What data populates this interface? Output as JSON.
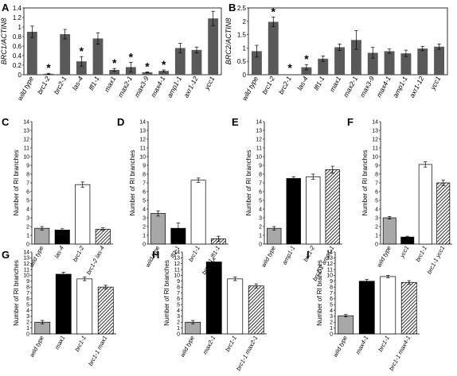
{
  "figure": {
    "width": 574,
    "height": 473
  },
  "chart_data": [
    {
      "panel": "A",
      "type": "bar",
      "ylabel": "BRC1/ACTIN8",
      "ylim": [
        0,
        1.4
      ],
      "yticks": [
        0,
        0.2,
        0.4,
        0.6,
        0.8,
        1.0,
        1.2,
        1.4
      ],
      "categories": [
        "wild type",
        "brc1-2",
        "brc2-1",
        "las-4",
        "lfl1-1",
        "max1",
        "max2-1",
        "max3-9",
        "max4-1",
        "amp1-1",
        "axr1-12",
        "ycc1"
      ],
      "values": [
        0.9,
        0.02,
        0.85,
        0.28,
        0.76,
        0.1,
        0.16,
        0.05,
        0.08,
        0.56,
        0.52,
        1.18
      ],
      "errors": [
        0.12,
        0.01,
        0.1,
        0.1,
        0.12,
        0.03,
        0.1,
        0.01,
        0.02,
        0.1,
        0.06,
        0.15
      ],
      "significant": [
        false,
        true,
        false,
        true,
        false,
        true,
        true,
        true,
        true,
        false,
        false,
        false
      ],
      "star": "*",
      "color": "#595959"
    },
    {
      "panel": "B",
      "type": "bar",
      "ylabel": "BRC2/ACTIN8",
      "ylim": [
        0,
        2.5
      ],
      "yticks": [
        0,
        0.5,
        1,
        1.5,
        2,
        2.5
      ],
      "categories": [
        "wild type",
        "brc1-2",
        "brc2-1",
        "las-4",
        "lfl1-1",
        "max1",
        "max2-1",
        "max3-9",
        "max4-1",
        "amp1-1",
        "axr1-12",
        "ycc1"
      ],
      "values": [
        0.88,
        1.98,
        0.0,
        0.28,
        0.6,
        1.03,
        1.3,
        0.82,
        0.88,
        0.8,
        0.98,
        1.05
      ],
      "errors": [
        0.22,
        0.18,
        0.0,
        0.1,
        0.1,
        0.12,
        0.35,
        0.2,
        0.08,
        0.12,
        0.08,
        0.1
      ],
      "significant": [
        false,
        true,
        true,
        true,
        false,
        false,
        false,
        false,
        false,
        false,
        false,
        false
      ],
      "star": "*",
      "color": "#595959"
    },
    {
      "panel": "C",
      "type": "bar",
      "ylabel": "Number of RI branches",
      "ylim": [
        0,
        14
      ],
      "yticks": [
        0,
        1,
        2,
        3,
        4,
        5,
        6,
        7,
        8,
        9,
        10,
        11,
        12,
        13,
        14
      ],
      "categories": [
        "wild type",
        "las-4",
        "brc1-2",
        "brc1-2 las-4"
      ],
      "values": [
        1.8,
        1.6,
        6.8,
        1.7
      ],
      "errors": [
        0.2,
        0.15,
        0.3,
        0.15
      ]
    },
    {
      "panel": "D",
      "type": "bar",
      "ylabel": "Number of RI branches",
      "ylim": [
        0,
        14
      ],
      "yticks": [
        0,
        1,
        2,
        3,
        4,
        5,
        6,
        7,
        8,
        9,
        10,
        11,
        12,
        13,
        14
      ],
      "categories": [
        "wild type",
        "lfl1-1",
        "brc1-1",
        "brc1-1 lfl1-1"
      ],
      "values": [
        3.5,
        1.8,
        7.3,
        0.6
      ],
      "errors": [
        0.3,
        0.6,
        0.25,
        0.3
      ]
    },
    {
      "panel": "E",
      "type": "bar",
      "ylabel": "Number of RI branches",
      "ylim": [
        0,
        14
      ],
      "yticks": [
        0,
        1,
        2,
        3,
        4,
        5,
        6,
        7,
        8,
        9,
        10,
        11,
        12,
        13,
        14
      ],
      "categories": [
        "wild type",
        "amp1-1",
        "brc1-2",
        "brc1-2 amp1-1"
      ],
      "values": [
        1.8,
        7.5,
        7.7,
        8.5
      ],
      "errors": [
        0.2,
        0.2,
        0.3,
        0.4
      ]
    },
    {
      "panel": "F",
      "type": "bar",
      "ylabel": "Number of RI branches",
      "ylim": [
        0,
        14
      ],
      "yticks": [
        0,
        1,
        2,
        3,
        4,
        5,
        6,
        7,
        8,
        9,
        10,
        11,
        12,
        13,
        14
      ],
      "categories": [
        "wild type",
        "ycc1",
        "brc1-1",
        "brc1-1 ycc1"
      ],
      "values": [
        3.0,
        0.8,
        9.1,
        7.0
      ],
      "errors": [
        0.15,
        0.1,
        0.3,
        0.3
      ]
    },
    {
      "panel": "G",
      "type": "bar",
      "ylabel": "Number of RI branches",
      "ylim": [
        0,
        14
      ],
      "yticks": [
        0,
        1,
        2,
        3,
        4,
        5,
        6,
        7,
        8,
        9,
        10,
        11,
        12,
        13,
        14
      ],
      "categories": [
        "wild type",
        "max1",
        "brc1-1",
        "brc1-1 max1"
      ],
      "values": [
        2.0,
        10.2,
        9.4,
        8.0
      ],
      "errors": [
        0.3,
        0.35,
        0.3,
        0.3
      ]
    },
    {
      "panel": "H",
      "type": "bar",
      "ylabel": "Number of RI branches",
      "ylim": [
        0,
        14
      ],
      "yticks": [
        0,
        1,
        2,
        3,
        4,
        5,
        6,
        7,
        8,
        9,
        10,
        11,
        12,
        13,
        14
      ],
      "categories": [
        "wild type",
        "max2-1",
        "brc1-1",
        "brc1-1 max2-1"
      ],
      "values": [
        2.0,
        12.3,
        9.4,
        8.2
      ],
      "errors": [
        0.3,
        0.5,
        0.3,
        0.35
      ]
    },
    {
      "panel": "I",
      "type": "bar",
      "ylabel": "Number of RI branches",
      "ylim": [
        0,
        14
      ],
      "yticks": [
        0,
        1,
        2,
        3,
        4,
        5,
        6,
        7,
        8,
        9,
        10,
        11,
        12,
        13,
        14
      ],
      "categories": [
        "wild type",
        "max4-1",
        "brc1-1",
        "brc1-1 max4-1"
      ],
      "values": [
        3.1,
        9.0,
        9.8,
        8.8
      ],
      "errors": [
        0.2,
        0.3,
        0.2,
        0.3
      ]
    }
  ],
  "colors": {
    "bar_ab": "#595959",
    "wild_type": "#a8a8a8",
    "single_mutant": "#000000",
    "brc1": "#ffffff",
    "double_mutant_hatch": "#000000"
  }
}
